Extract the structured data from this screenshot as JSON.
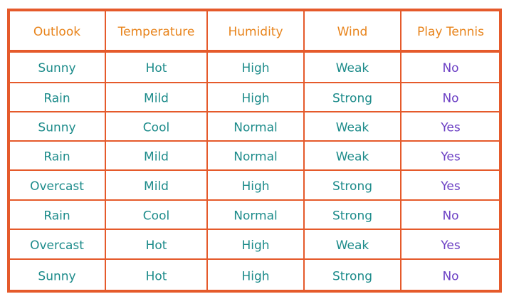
{
  "table": {
    "header": [
      "Outlook",
      "Temperature",
      "Humidity",
      "Wind",
      "Play Tennis"
    ],
    "rows": [
      [
        "Sunny",
        "Hot",
        "High",
        "Weak",
        "No"
      ],
      [
        "Rain",
        "Mild",
        "High",
        "Strong",
        "No"
      ],
      [
        "Sunny",
        "Cool",
        "Normal",
        "Weak",
        "Yes"
      ],
      [
        "Rain",
        "Mild",
        "Normal",
        "Weak",
        "Yes"
      ],
      [
        "Overcast",
        "Mild",
        "High",
        "Strong",
        "Yes"
      ],
      [
        "Rain",
        "Cool",
        "Normal",
        "Strong",
        "No"
      ],
      [
        "Overcast",
        "Hot",
        "High",
        "Weak",
        "Yes"
      ],
      [
        "Sunny",
        "Hot",
        "High",
        "Strong",
        "No"
      ]
    ]
  }
}
